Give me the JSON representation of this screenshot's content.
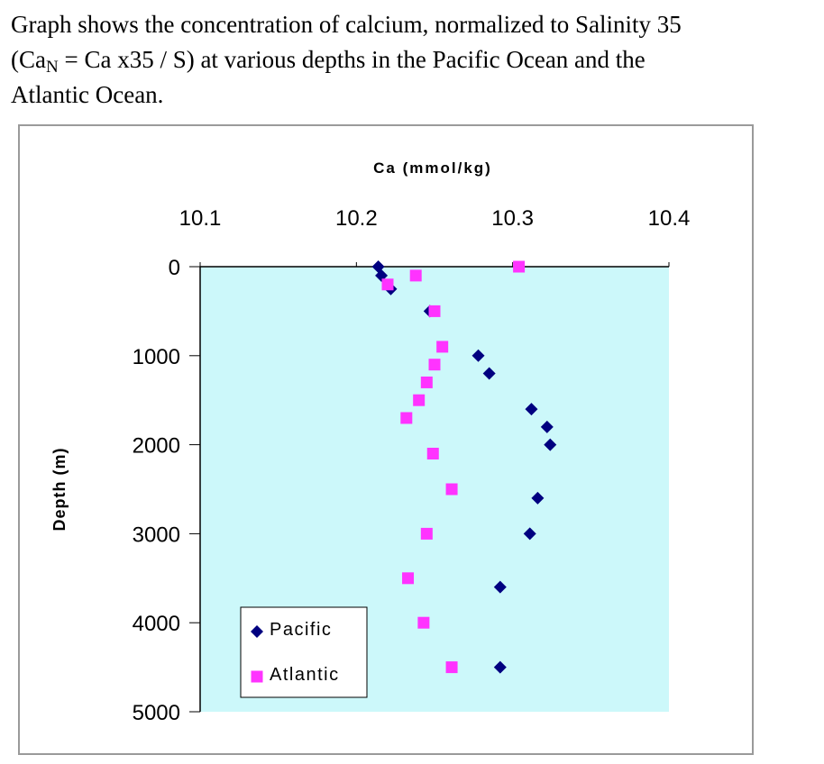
{
  "caption": {
    "line1": "Graph shows the concentration of calcium, normalized to Salinity 35",
    "line2_pre": "(Ca",
    "line2_sub": "N",
    "line2_post": " = Ca x35 / S) at various depths in the Pacific Ocean and the",
    "line3": "Atlantic Ocean."
  },
  "colors": {
    "plot_background": "#ccf8fa",
    "pacific": "#000080",
    "atlantic": "#ff33ff",
    "axis": "#000000"
  },
  "chart_data": {
    "type": "scatter",
    "xlabel": "Ca (mmol/kg)",
    "ylabel": "Depth (m)",
    "x_axis_position": "top",
    "y_axis_reversed": true,
    "xlim": [
      10.1,
      10.4
    ],
    "ylim": [
      0,
      5000
    ],
    "x_ticks": [
      "10.1",
      "10.2",
      "10.3",
      "10.4"
    ],
    "y_ticks": [
      "0",
      "1000",
      "2000",
      "3000",
      "4000",
      "5000"
    ],
    "grid": false,
    "legend_position": "bottom-left",
    "series": [
      {
        "name": "Pacific",
        "marker": "diamond",
        "points": [
          {
            "x": 10.214,
            "y": 0
          },
          {
            "x": 10.216,
            "y": 100
          },
          {
            "x": 10.222,
            "y": 250
          },
          {
            "x": 10.247,
            "y": 500
          },
          {
            "x": 10.278,
            "y": 1000
          },
          {
            "x": 10.285,
            "y": 1200
          },
          {
            "x": 10.312,
            "y": 1600
          },
          {
            "x": 10.322,
            "y": 1800
          },
          {
            "x": 10.324,
            "y": 2000
          },
          {
            "x": 10.316,
            "y": 2600
          },
          {
            "x": 10.311,
            "y": 3000
          },
          {
            "x": 10.292,
            "y": 3600
          },
          {
            "x": 10.292,
            "y": 4500
          }
        ]
      },
      {
        "name": "Atlantic",
        "marker": "square",
        "points": [
          {
            "x": 10.304,
            "y": 0
          },
          {
            "x": 10.238,
            "y": 100
          },
          {
            "x": 10.22,
            "y": 200
          },
          {
            "x": 10.25,
            "y": 500
          },
          {
            "x": 10.255,
            "y": 900
          },
          {
            "x": 10.25,
            "y": 1100
          },
          {
            "x": 10.245,
            "y": 1300
          },
          {
            "x": 10.24,
            "y": 1500
          },
          {
            "x": 10.232,
            "y": 1700
          },
          {
            "x": 10.249,
            "y": 2100
          },
          {
            "x": 10.261,
            "y": 2500
          },
          {
            "x": 10.245,
            "y": 3000
          },
          {
            "x": 10.233,
            "y": 3500
          },
          {
            "x": 10.243,
            "y": 4000
          },
          {
            "x": 10.261,
            "y": 4500
          }
        ]
      }
    ]
  }
}
